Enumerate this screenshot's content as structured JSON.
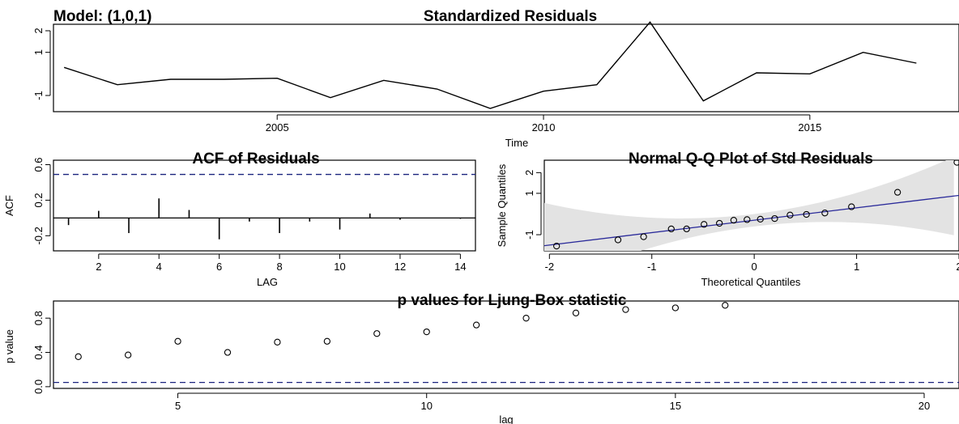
{
  "model_label": "Model: (1,0,1)",
  "chart_data": [
    {
      "type": "line",
      "title": "Standardized Residuals",
      "xlabel": "Time",
      "ylabel": "",
      "x": [
        2001,
        2002,
        2003,
        2004,
        2005,
        2006,
        2007,
        2008,
        2009,
        2010,
        2011,
        2012,
        2013,
        2014,
        2015,
        2016,
        2017
      ],
      "values": [
        0.3,
        -0.5,
        -0.25,
        -0.25,
        -0.2,
        -1.1,
        -0.3,
        -0.7,
        -1.6,
        -0.8,
        -0.5,
        2.4,
        -1.25,
        0.05,
        0.0,
        1.0,
        0.5
      ],
      "xlim": [
        2000.8,
        2017.8
      ],
      "ylim": [
        -1.75,
        2.3
      ],
      "x_ticks": [
        "2005",
        "2010",
        "2015"
      ],
      "y_ticks": [
        "-1",
        "1",
        "2"
      ],
      "grid": false
    },
    {
      "type": "bar",
      "title": "ACF of Residuals",
      "xlabel": "LAG",
      "ylabel": "ACF",
      "x": [
        1,
        2,
        3,
        4,
        5,
        6,
        7,
        8,
        9,
        10,
        11,
        12,
        13,
        14
      ],
      "values": [
        -0.08,
        0.08,
        -0.17,
        0.22,
        0.09,
        -0.24,
        -0.04,
        -0.17,
        -0.04,
        -0.13,
        0.05,
        -0.02,
        0.0,
        -0.01
      ],
      "confidence_bound": 0.49,
      "xlim": [
        0.5,
        14.5
      ],
      "ylim": [
        -0.37,
        0.65
      ],
      "x_ticks": [
        "2",
        "4",
        "6",
        "8",
        "10",
        "12",
        "14"
      ],
      "y_ticks": [
        "-0.2",
        "0.2",
        "0.6"
      ],
      "grid": false
    },
    {
      "type": "scatter",
      "title": "Normal Q-Q Plot of Std Residuals",
      "xlabel": "Theoretical Quantiles",
      "ylabel": "Sample Quantiles",
      "points": [
        [
          -1.93,
          -1.55
        ],
        [
          -1.33,
          -1.25
        ],
        [
          -1.08,
          -1.1
        ],
        [
          -0.81,
          -0.72
        ],
        [
          -0.66,
          -0.72
        ],
        [
          -0.49,
          -0.5
        ],
        [
          -0.34,
          -0.45
        ],
        [
          -0.2,
          -0.3
        ],
        [
          -0.07,
          -0.27
        ],
        [
          0.06,
          -0.25
        ],
        [
          0.2,
          -0.22
        ],
        [
          0.35,
          -0.05
        ],
        [
          0.51,
          -0.02
        ],
        [
          0.69,
          0.05
        ],
        [
          0.95,
          0.35
        ],
        [
          1.4,
          1.05
        ],
        [
          1.98,
          2.5
        ]
      ],
      "qq_line": {
        "intercept": -0.3,
        "slope": 0.6
      },
      "band_color": "#e3e3e3",
      "line_color": "#2a2a9a",
      "xlim": [
        -2.05,
        2.0
      ],
      "ylim": [
        -1.78,
        2.6
      ],
      "x_ticks": [
        "-2",
        "-1",
        "0",
        "1",
        "2"
      ],
      "y_ticks": [
        "-1",
        "1",
        "2"
      ],
      "grid": false
    },
    {
      "type": "scatter",
      "title": "p values for Ljung-Box statistic",
      "xlabel": "lag",
      "ylabel": "p value",
      "points": [
        [
          3,
          0.35
        ],
        [
          4,
          0.37
        ],
        [
          5,
          0.53
        ],
        [
          6,
          0.4
        ],
        [
          7,
          0.52
        ],
        [
          8,
          0.53
        ],
        [
          9,
          0.62
        ],
        [
          10,
          0.64
        ],
        [
          11,
          0.72
        ],
        [
          12,
          0.8
        ],
        [
          13,
          0.86
        ],
        [
          14,
          0.9
        ],
        [
          15,
          0.92
        ],
        [
          16,
          0.95
        ]
      ],
      "significance_line": 0.05,
      "xlim": [
        2.5,
        20.7
      ],
      "ylim": [
        -0.02,
        1.0
      ],
      "x_ticks": [
        "5",
        "10",
        "15",
        "20"
      ],
      "y_ticks": [
        "0.0",
        "0.4",
        "0.8"
      ],
      "grid": false
    }
  ]
}
